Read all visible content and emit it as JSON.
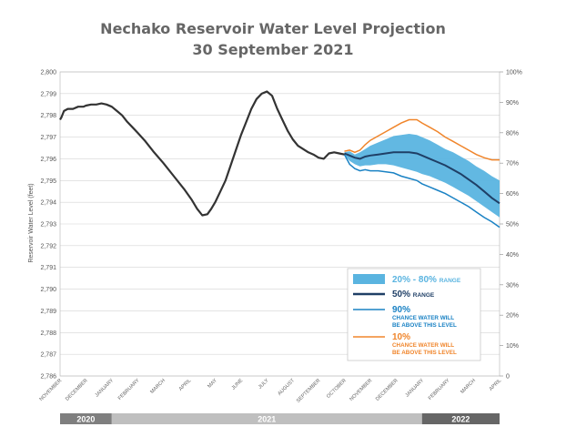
{
  "chart_data": {
    "type": "line",
    "title": "Nechako Reservoir Water Level Projection",
    "subtitle": "30 September 2021",
    "ylabel": "Reservoir Water Level (feet)",
    "ylim": [
      2786,
      2800
    ],
    "y_ticks": [
      "2,786",
      "2,787",
      "2,788",
      "2,789",
      "2,790",
      "2,791",
      "2,792",
      "2,793",
      "2,794",
      "2,795",
      "2,796",
      "2,797",
      "2,798",
      "2,799",
      "2,800"
    ],
    "y2lim": [
      0,
      100
    ],
    "y2_ticks": [
      "0",
      "10%",
      "20%",
      "30%",
      "40%",
      "50%",
      "60%",
      "70%",
      "80%",
      "90%",
      "100%"
    ],
    "x_range": [
      0,
      17
    ],
    "month_labels": [
      "NOVEMBER",
      "DECEMBER",
      "JANUARY",
      "FEBRUARY",
      "MARCH",
      "APRIL",
      "MAY",
      "JUNE",
      "JULY",
      "AUGUST",
      "SEPTEMBER",
      "OCTOBER",
      "NOVEMBER",
      "DECEMBER",
      "JANUARY",
      "FEBRUARY",
      "MARCH",
      "APRIL"
    ],
    "year_bands": [
      {
        "label": "2020",
        "start": 0,
        "end": 2,
        "color": "#7f7f7f"
      },
      {
        "label": "2021",
        "start": 2,
        "end": 14,
        "color": "#bfbfbf"
      },
      {
        "label": "2022",
        "start": 14,
        "end": 17,
        "color": "#666666"
      }
    ],
    "grid": true,
    "legend_position": "bottom-right",
    "colors": {
      "historical": "#333333",
      "range_20_80": "#5ab4e0",
      "p50": "#1f3f66",
      "p90": "#1a82c4",
      "p10": "#f0852b"
    },
    "legend": [
      {
        "key": "range_20_80",
        "label": "20% - 80%",
        "sublabel": "RANGE"
      },
      {
        "key": "p50",
        "label": "50%",
        "sublabel": "RANGE"
      },
      {
        "key": "p90",
        "label": "90%",
        "sublabel": "CHANCE WATER WILL BE ABOVE THIS LEVEL"
      },
      {
        "key": "p10",
        "label": "10%",
        "sublabel": "CHANCE WATER WILL BE ABOVE THIS LEVEL"
      }
    ],
    "series": [
      {
        "key": "historical",
        "x": [
          0,
          0.05,
          0.15,
          0.3,
          0.5,
          0.7,
          0.9,
          1.0,
          1.2,
          1.4,
          1.6,
          1.8,
          2.0,
          2.2,
          2.4,
          2.6,
          2.8,
          3.0,
          3.3,
          3.6,
          4.0,
          4.4,
          4.8,
          5.1,
          5.3,
          5.5,
          5.7,
          5.85,
          6.0,
          6.2,
          6.4,
          6.6,
          6.8,
          7.0,
          7.2,
          7.4,
          7.6,
          7.8,
          8.0,
          8.2,
          8.4,
          8.6,
          8.8,
          9.0,
          9.2,
          9.4,
          9.6,
          9.8,
          10.0,
          10.2,
          10.4,
          10.6,
          10.8,
          11.0
        ],
        "y": [
          2797.8,
          2797.9,
          2798.2,
          2798.3,
          2798.3,
          2798.4,
          2798.4,
          2798.45,
          2798.5,
          2798.5,
          2798.55,
          2798.5,
          2798.4,
          2798.2,
          2798.0,
          2797.7,
          2797.45,
          2797.2,
          2796.8,
          2796.35,
          2795.8,
          2795.2,
          2794.6,
          2794.1,
          2793.7,
          2793.4,
          2793.45,
          2793.7,
          2794.0,
          2794.5,
          2795.0,
          2795.7,
          2796.4,
          2797.1,
          2797.7,
          2798.3,
          2798.75,
          2799.0,
          2799.1,
          2798.9,
          2798.3,
          2797.8,
          2797.3,
          2796.9,
          2796.6,
          2796.45,
          2796.3,
          2796.2,
          2796.05,
          2796.0,
          2796.25,
          2796.3,
          2796.25,
          2796.2
        ]
      },
      {
        "key": "range_upper",
        "x": [
          11.0,
          11.2,
          11.4,
          11.6,
          11.8,
          12.0,
          12.3,
          12.6,
          12.9,
          13.2,
          13.5,
          13.8,
          14.0,
          14.3,
          14.6,
          14.9,
          15.2,
          15.5,
          15.8,
          16.1,
          16.4,
          16.7,
          17.0
        ],
        "y": [
          2796.3,
          2796.35,
          2796.2,
          2796.3,
          2796.45,
          2796.6,
          2796.75,
          2796.9,
          2797.05,
          2797.1,
          2797.15,
          2797.1,
          2797.0,
          2796.85,
          2796.65,
          2796.45,
          2796.3,
          2796.1,
          2795.9,
          2795.65,
          2795.45,
          2795.2,
          2795.0
        ]
      },
      {
        "key": "range_lower",
        "x": [
          11.0,
          11.2,
          11.4,
          11.6,
          11.8,
          12.0,
          12.3,
          12.6,
          12.9,
          13.2,
          13.5,
          13.8,
          14.0,
          14.3,
          14.6,
          14.9,
          15.2,
          15.5,
          15.8,
          16.1,
          16.4,
          16.7,
          17.0
        ],
        "y": [
          2796.2,
          2795.9,
          2795.75,
          2795.65,
          2795.7,
          2795.7,
          2795.75,
          2795.75,
          2795.7,
          2795.6,
          2795.5,
          2795.4,
          2795.3,
          2795.2,
          2795.05,
          2794.9,
          2794.7,
          2794.5,
          2794.3,
          2794.05,
          2793.8,
          2793.55,
          2793.3
        ]
      },
      {
        "key": "p50",
        "x": [
          11.0,
          11.2,
          11.4,
          11.6,
          11.8,
          12.0,
          12.3,
          12.6,
          12.9,
          13.2,
          13.5,
          13.8,
          14.0,
          14.3,
          14.6,
          14.9,
          15.2,
          15.5,
          15.8,
          16.1,
          16.4,
          16.7,
          17.0
        ],
        "y": [
          2796.25,
          2796.15,
          2796.05,
          2796.0,
          2796.1,
          2796.15,
          2796.2,
          2796.25,
          2796.3,
          2796.3,
          2796.3,
          2796.25,
          2796.15,
          2796.0,
          2795.85,
          2795.7,
          2795.5,
          2795.3,
          2795.05,
          2794.8,
          2794.5,
          2794.2,
          2793.95
        ]
      },
      {
        "key": "p90",
        "x": [
          11.0,
          11.2,
          11.4,
          11.6,
          11.8,
          12.0,
          12.3,
          12.6,
          12.9,
          13.2,
          13.5,
          13.8,
          14.0,
          14.3,
          14.6,
          14.9,
          15.2,
          15.5,
          15.8,
          16.1,
          16.4,
          16.7,
          17.0
        ],
        "y": [
          2796.2,
          2795.75,
          2795.55,
          2795.45,
          2795.5,
          2795.45,
          2795.45,
          2795.4,
          2795.35,
          2795.2,
          2795.1,
          2795.0,
          2794.85,
          2794.7,
          2794.55,
          2794.4,
          2794.2,
          2794.0,
          2793.8,
          2793.55,
          2793.3,
          2793.1,
          2792.85
        ]
      },
      {
        "key": "p10",
        "x": [
          11.0,
          11.2,
          11.4,
          11.6,
          11.8,
          12.0,
          12.3,
          12.6,
          12.9,
          13.2,
          13.5,
          13.8,
          14.0,
          14.3,
          14.6,
          14.9,
          15.2,
          15.5,
          15.8,
          16.1,
          16.4,
          16.7,
          17.0
        ],
        "y": [
          2796.35,
          2796.4,
          2796.3,
          2796.4,
          2796.65,
          2796.85,
          2797.05,
          2797.25,
          2797.45,
          2797.65,
          2797.8,
          2797.8,
          2797.65,
          2797.45,
          2797.25,
          2797.0,
          2796.8,
          2796.6,
          2796.4,
          2796.2,
          2796.05,
          2795.95,
          2795.95
        ]
      }
    ]
  }
}
